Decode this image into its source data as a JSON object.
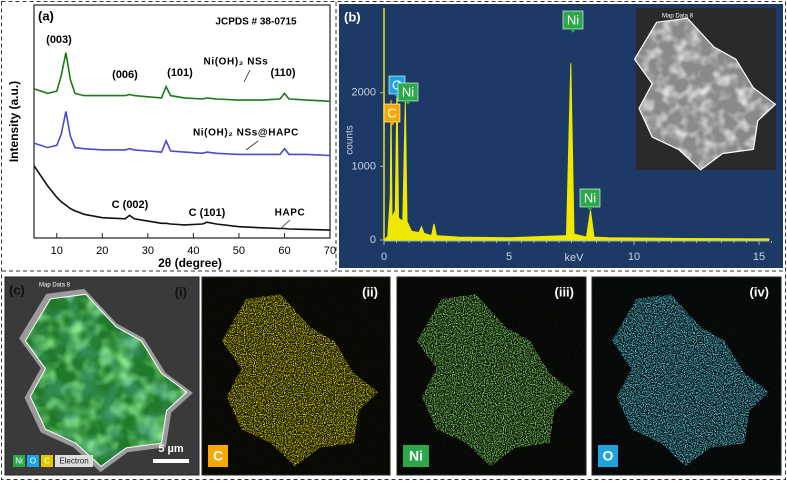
{
  "chart_data": [
    {
      "type": "line",
      "panel_label": "(a)",
      "x_label": "2θ (degree)",
      "y_label": "Intensity (a.u.)",
      "x": [
        5,
        8,
        10,
        11,
        12,
        13,
        14,
        16,
        20,
        25,
        26,
        27,
        30,
        33,
        34,
        35,
        38,
        42,
        43,
        45,
        50,
        55,
        59,
        60,
        61,
        65,
        70
      ],
      "series": [
        {
          "name": "Ni(OH)₂ NSs",
          "color": "#1a7a1a",
          "values": [
            6.6,
            6.4,
            6.5,
            7.2,
            8.2,
            7.0,
            6.4,
            6.3,
            6.3,
            6.3,
            6.35,
            6.3,
            6.25,
            6.2,
            6.7,
            6.3,
            6.2,
            6.15,
            6.2,
            6.15,
            6.1,
            6.1,
            6.15,
            6.4,
            6.15,
            6.1,
            6.05
          ]
        },
        {
          "name": "Ni(OH)₂ NSs@HAPC",
          "color": "#4a4ad0",
          "values": [
            4.2,
            4.0,
            4.1,
            4.6,
            5.6,
            4.5,
            4.0,
            3.95,
            3.9,
            3.9,
            3.95,
            3.9,
            3.85,
            3.8,
            4.3,
            3.85,
            3.8,
            3.75,
            3.8,
            3.75,
            3.7,
            3.7,
            3.7,
            3.95,
            3.7,
            3.7,
            3.65
          ]
        },
        {
          "name": "HAPC",
          "color": "#111111",
          "values": [
            3.2,
            2.3,
            1.8,
            1.6,
            1.45,
            1.3,
            1.2,
            1.05,
            0.9,
            0.85,
            1.0,
            0.85,
            0.75,
            0.65,
            0.65,
            0.62,
            0.58,
            0.62,
            0.7,
            0.62,
            0.5,
            0.45,
            0.42,
            0.42,
            0.4,
            0.38,
            0.35
          ]
        }
      ],
      "annotations": [
        "JCPDS # 38-0715",
        "(003)",
        "(006)",
        "(101)",
        "(110)",
        "C (002)",
        "C (101)"
      ],
      "xlim": [
        5,
        70
      ],
      "xticks": [
        10,
        20,
        30,
        40,
        50,
        60,
        70
      ],
      "ylim": [
        0,
        10
      ]
    },
    {
      "type": "area",
      "panel_label": "(b)",
      "x_label": "keV",
      "y_label": "counts",
      "color": "#f0e800",
      "background": "#1d3a66",
      "x": [
        0,
        0.15,
        0.25,
        0.28,
        0.32,
        0.45,
        0.52,
        0.58,
        0.75,
        0.85,
        0.92,
        1.1,
        1.4,
        1.5,
        1.6,
        1.9,
        2.0,
        2.1,
        3,
        5,
        7.3,
        7.47,
        7.6,
        8.1,
        8.26,
        8.4,
        9,
        12,
        15.4
      ],
      "values": [
        0,
        50,
        600,
        1900,
        300,
        400,
        2100,
        300,
        250,
        1900,
        250,
        120,
        100,
        180,
        90,
        60,
        220,
        60,
        40,
        30,
        60,
        2400,
        80,
        40,
        400,
        40,
        30,
        20,
        15
      ],
      "annotations": [
        {
          "text": "C",
          "color": "#f5a800"
        },
        {
          "text": "O",
          "color": "#1fa3e0"
        },
        {
          "text": "Ni",
          "color": "#2aa84a"
        },
        {
          "text": "Ni",
          "color": "#2aa84a"
        },
        {
          "text": "Ni",
          "color": "#2aa84a"
        }
      ],
      "inset_label": "Map Data 8",
      "xlim": [
        0,
        15.4
      ],
      "xticks": [
        0,
        5,
        10,
        15
      ],
      "ylim": [
        0,
        3150
      ],
      "yticks": [
        0,
        1000,
        2000
      ]
    }
  ],
  "maps": [
    {
      "panel_label": "(c)",
      "roman": "(i)",
      "map_label": "Map Data 8",
      "color": "#3cc83c",
      "legend": [
        {
          "text": "Ni",
          "color": "#2aa84a"
        },
        {
          "text": "O",
          "color": "#1fa3e0"
        },
        {
          "text": "C",
          "color": "#e0c800"
        },
        {
          "text": "Electron",
          "color": "#dddddd"
        }
      ],
      "scale_bar": "5 µm"
    },
    {
      "roman": "(ii)",
      "element": "C",
      "color": "#e6d800",
      "badge": "#f5a800"
    },
    {
      "roman": "(iii)",
      "element": "Ni",
      "color": "#40d020",
      "badge": "#2aa84a"
    },
    {
      "roman": "(iv)",
      "element": "O",
      "color": "#20c8f0",
      "badge": "#1fa3e0"
    }
  ]
}
